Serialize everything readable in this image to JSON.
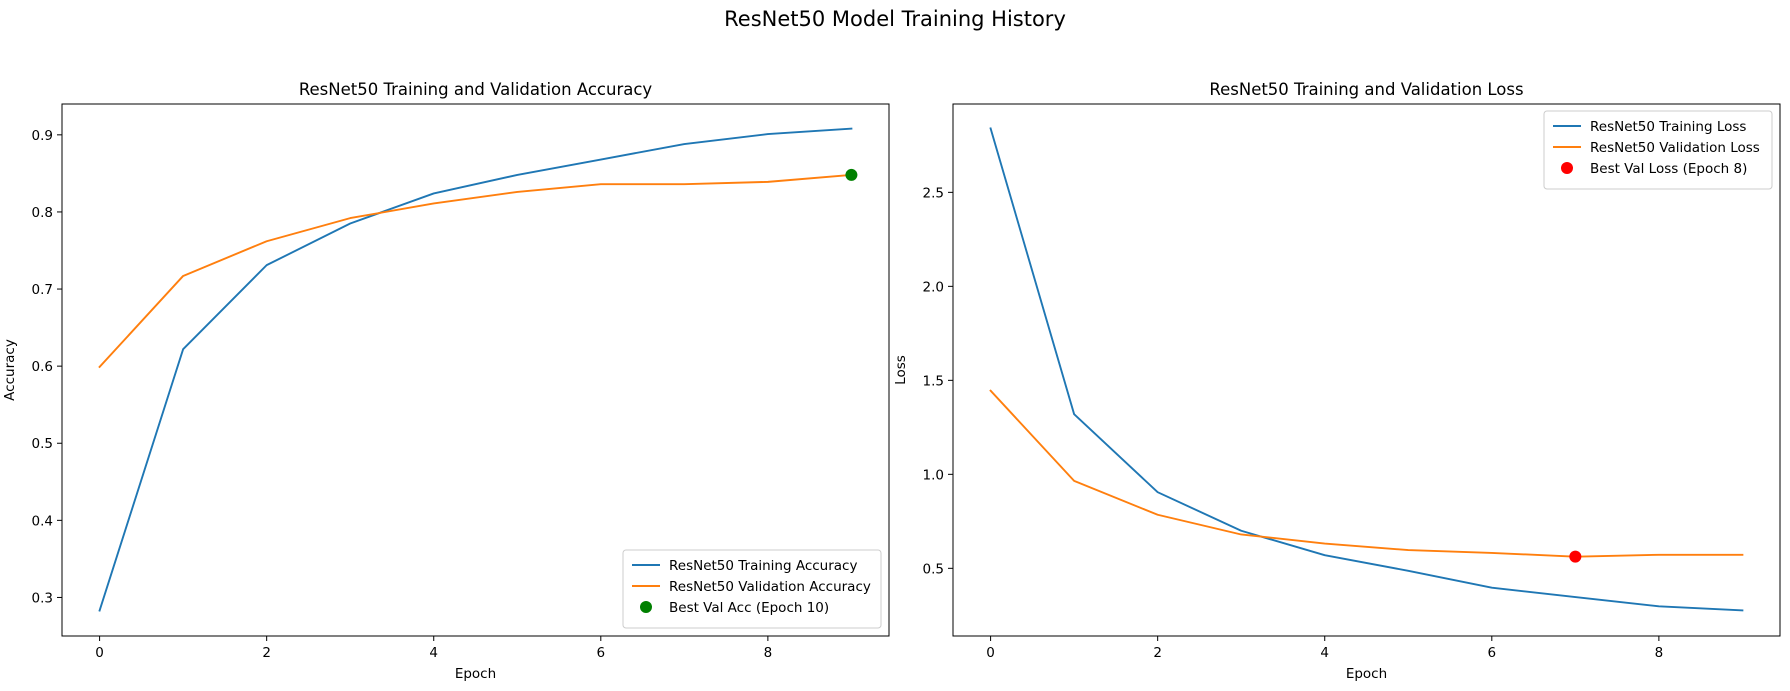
{
  "figure": {
    "suptitle": "ResNet50 Model Training History"
  },
  "colors": {
    "training": "#1f77b4",
    "validation": "#ff7f0e",
    "best_acc_marker": "#008000",
    "best_loss_marker": "#ff0000"
  },
  "chart_data": [
    {
      "type": "line",
      "title": "ResNet50 Training and Validation Accuracy",
      "xlabel": "Epoch",
      "ylabel": "Accuracy",
      "xlim": [
        -0.45,
        9.45
      ],
      "ylim": [
        0.25,
        0.94
      ],
      "xticks": [
        0,
        2,
        4,
        6,
        8
      ],
      "yticks": [
        0.3,
        0.4,
        0.5,
        0.6,
        0.7,
        0.8,
        0.9
      ],
      "ytick_labels": [
        "0.3",
        "0.4",
        "0.5",
        "0.6",
        "0.7",
        "0.8",
        "0.9"
      ],
      "legend_position": "lower-right",
      "x": [
        0,
        1,
        2,
        3,
        4,
        5,
        6,
        7,
        8,
        9
      ],
      "series": [
        {
          "name": "ResNet50 Training Accuracy",
          "color_key": "training",
          "values": [
            0.283,
            0.622,
            0.731,
            0.785,
            0.824,
            0.848,
            0.868,
            0.888,
            0.901,
            0.908
          ]
        },
        {
          "name": "ResNet50 Validation Accuracy",
          "color_key": "validation",
          "values": [
            0.599,
            0.717,
            0.762,
            0.792,
            0.811,
            0.826,
            0.836,
            0.836,
            0.839,
            0.848
          ]
        }
      ],
      "marker": {
        "name": "Best Val Acc (Epoch 10)",
        "color_key": "best_acc_marker",
        "x": 9,
        "y": 0.848
      }
    },
    {
      "type": "line",
      "title": "ResNet50 Training and Validation Loss",
      "xlabel": "Epoch",
      "ylabel": "Loss",
      "xlim": [
        -0.45,
        9.45
      ],
      "ylim": [
        0.14,
        2.97
      ],
      "xticks": [
        0,
        2,
        4,
        6,
        8
      ],
      "yticks": [
        0.5,
        1.0,
        1.5,
        2.0,
        2.5
      ],
      "ytick_labels": [
        "0.5",
        "1.0",
        "1.5",
        "2.0",
        "2.5"
      ],
      "legend_position": "upper-right",
      "x": [
        0,
        1,
        2,
        3,
        4,
        5,
        6,
        7,
        8,
        9
      ],
      "series": [
        {
          "name": "ResNet50 Training Loss",
          "color_key": "training",
          "values": [
            2.84,
            1.32,
            0.905,
            0.7,
            0.57,
            0.487,
            0.397,
            0.347,
            0.298,
            0.276
          ]
        },
        {
          "name": "ResNet50 Validation Loss",
          "color_key": "validation",
          "values": [
            1.445,
            0.965,
            0.785,
            0.68,
            0.632,
            0.597,
            0.582,
            0.562,
            0.572,
            0.572
          ]
        }
      ],
      "marker": {
        "name": "Best Val Loss (Epoch 8)",
        "color_key": "best_loss_marker",
        "x": 7,
        "y": 0.562
      }
    }
  ]
}
